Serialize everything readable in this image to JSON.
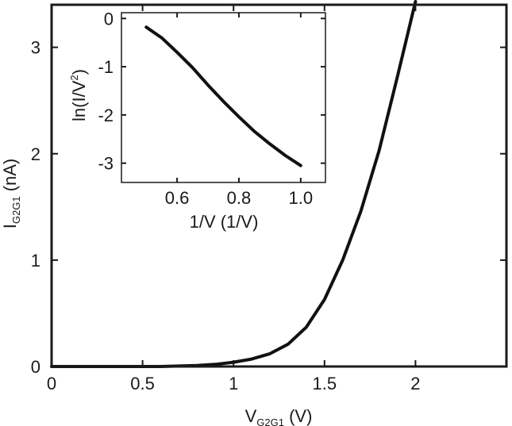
{
  "chart_data": [
    {
      "type": "line",
      "panel": "main",
      "xlabel": {
        "main": "V",
        "sub": "G2G1",
        "unit": " (V)"
      },
      "ylabel": {
        "main": "I",
        "sub": "G2G1",
        "unit": " (nA)"
      },
      "xlim": [
        0,
        2.5
      ],
      "ylim": [
        0,
        3.4
      ],
      "x_ticks": [
        0,
        0.5,
        1,
        1.5,
        2
      ],
      "x_tick_labels": [
        "0",
        "0.5",
        "1",
        "1.5",
        "2"
      ],
      "y_ticks": [
        0,
        1,
        2,
        3
      ],
      "y_tick_labels": [
        "0",
        "1",
        "2",
        "3"
      ],
      "series": [
        {
          "color": "#111111",
          "x": [
            0.0,
            0.4,
            0.6,
            0.8,
            0.9,
            1.0,
            1.1,
            1.2,
            1.3,
            1.4,
            1.5,
            1.6,
            1.7,
            1.8,
            1.9,
            2.0
          ],
          "y": [
            0.0,
            0.0,
            0.0,
            0.01,
            0.02,
            0.04,
            0.07,
            0.12,
            0.21,
            0.37,
            0.63,
            1.0,
            1.46,
            2.03,
            2.72,
            3.43
          ]
        }
      ]
    },
    {
      "type": "line",
      "panel": "inset",
      "xlabel": "1/V (1/V)",
      "ylabel": {
        "main": "ln(I/V",
        "sup": "2",
        "tail": ")"
      },
      "xlim": [
        0.42,
        1.08
      ],
      "ylim": [
        -3.4,
        0.12
      ],
      "x_ticks": [
        0.6,
        0.8,
        1.0
      ],
      "x_tick_labels": [
        "0.6",
        "0.8",
        "1.0"
      ],
      "y_ticks": [
        0,
        -1,
        -2,
        -3
      ],
      "y_tick_labels": [
        "0",
        "-1",
        "-2",
        "-3"
      ],
      "series": [
        {
          "color": "#111111",
          "x": [
            0.5,
            0.55,
            0.6,
            0.65,
            0.7,
            0.75,
            0.8,
            0.85,
            0.9,
            0.95,
            1.0
          ],
          "y": [
            -0.18,
            -0.4,
            -0.7,
            -1.02,
            -1.38,
            -1.72,
            -2.04,
            -2.34,
            -2.6,
            -2.84,
            -3.05
          ]
        }
      ]
    }
  ]
}
